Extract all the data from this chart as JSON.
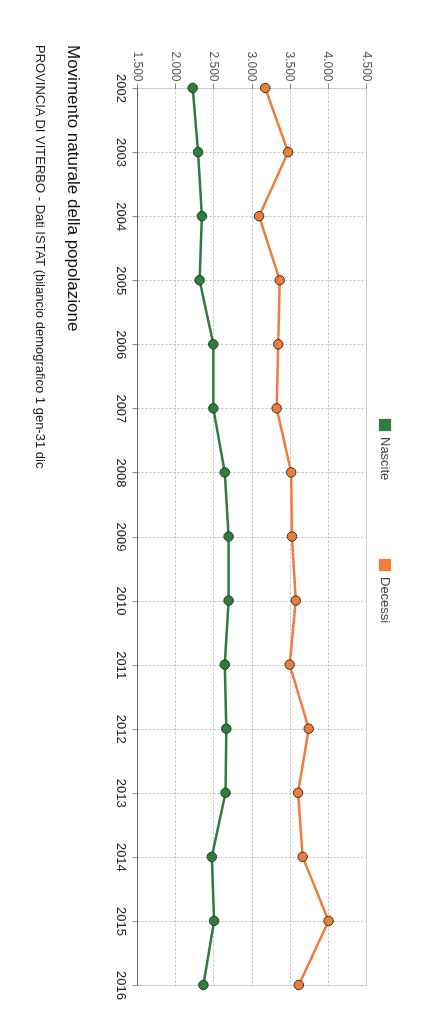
{
  "chart_data": {
    "type": "line",
    "orientation": "horizontal",
    "title": "Movimento naturale della popolazione",
    "subtitle": "PROVINCIA DI VITERBO - Dati ISTAT (bilancio demografico 1 gen-31 dic",
    "categories": [
      "2002",
      "2003",
      "2004",
      "2005",
      "2006",
      "2007",
      "2008",
      "2009",
      "2010",
      "2011",
      "2012",
      "2013",
      "2014",
      "2015",
      "2016"
    ],
    "series": [
      {
        "name": "Nascite",
        "color": "#2f7d3c",
        "values": [
          2230,
          2300,
          2350,
          2320,
          2500,
          2500,
          2650,
          2700,
          2700,
          2650,
          2670,
          2660,
          2480,
          2510,
          2370
        ]
      },
      {
        "name": "Decessi",
        "color": "#f07c3a",
        "values": [
          3180,
          3480,
          3100,
          3370,
          3350,
          3330,
          3520,
          3530,
          3580,
          3500,
          3750,
          3610,
          3670,
          4010,
          3620
        ]
      }
    ],
    "xlim": [
      1500,
      4500
    ],
    "xticks": [
      {
        "value": 1500,
        "label": "1.500"
      },
      {
        "value": 2000,
        "label": "2.000"
      },
      {
        "value": 2500,
        "label": "2.500"
      },
      {
        "value": 3000,
        "label": "3.000"
      },
      {
        "value": 3500,
        "label": "3.500"
      },
      {
        "value": 4000,
        "label": "4.000"
      },
      {
        "value": 4500,
        "label": "4.500"
      }
    ],
    "grid": true,
    "legend": "top",
    "marker": "circle",
    "line_style": "solid"
  }
}
